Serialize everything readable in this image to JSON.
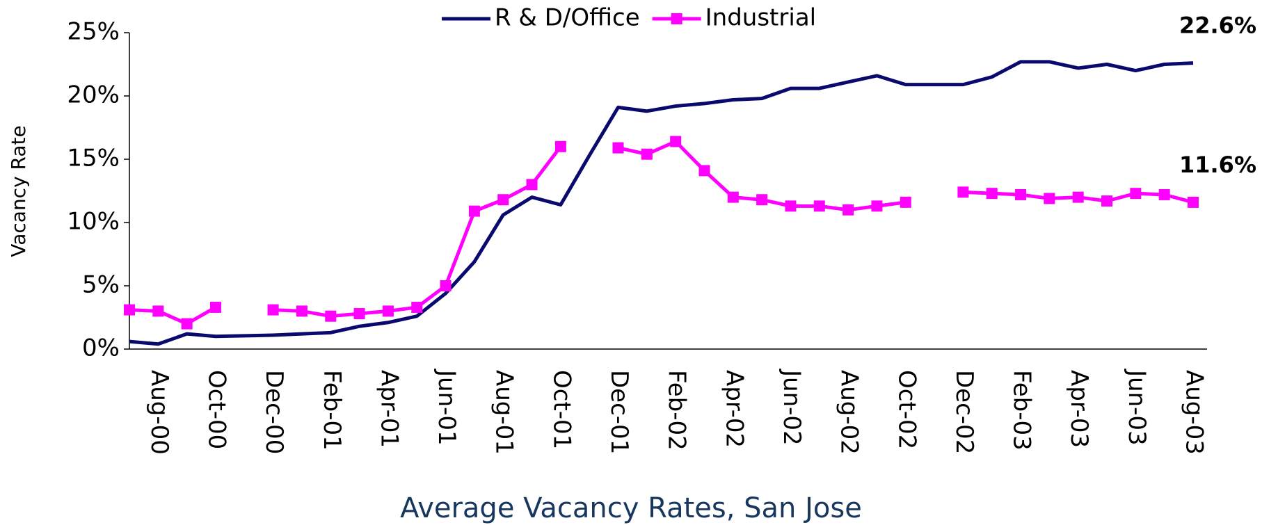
{
  "chart_data": {
    "type": "line",
    "title": "Average Vacancy Rates, San Jose",
    "y_label": "Vacancy Rate",
    "categories": [
      null,
      "Aug-00",
      null,
      "Oct-00",
      null,
      "Dec-00",
      null,
      "Feb-01",
      null,
      "Apr-01",
      null,
      "Jun-01",
      null,
      "Aug-01",
      null,
      "Oct-01",
      null,
      "Dec-01",
      null,
      "Feb-02",
      null,
      "Apr-02",
      null,
      "Jun-02",
      null,
      "Aug-02",
      null,
      "Oct-02",
      null,
      "Dec-02",
      null,
      "Feb-03",
      null,
      "Apr-03",
      null,
      "Jun-03",
      null,
      "Aug-03"
    ],
    "series": [
      {
        "name": "R & D/Office",
        "color": "#0a0a6e",
        "marker": "none",
        "values": [
          0.6,
          0.4,
          1.2,
          1.0,
          1.05,
          1.1,
          1.2,
          1.3,
          1.8,
          2.1,
          2.6,
          4.4,
          6.9,
          10.6,
          12.0,
          11.4,
          15.3,
          19.1,
          18.8,
          19.2,
          19.4,
          19.7,
          19.8,
          20.6,
          20.6,
          21.1,
          21.6,
          20.9,
          20.9,
          20.9,
          21.5,
          22.7,
          22.7,
          22.2,
          22.5,
          22.0,
          22.5,
          22.6
        ]
      },
      {
        "name": "Industrial",
        "color": "#ff00ff",
        "marker": "square",
        "values": [
          3.1,
          3.0,
          2.0,
          3.3,
          null,
          3.1,
          3.0,
          2.6,
          2.8,
          3.0,
          3.3,
          5.0,
          10.9,
          11.8,
          13.0,
          16.0,
          null,
          15.9,
          15.4,
          16.4,
          14.1,
          12.0,
          11.8,
          11.3,
          11.3,
          11.0,
          11.3,
          11.6,
          null,
          12.4,
          12.3,
          12.2,
          11.9,
          12.0,
          11.7,
          12.3,
          12.2,
          11.6
        ]
      }
    ],
    "annotations": [
      "22.6%",
      "11.6%"
    ],
    "ylim": [
      0,
      25
    ],
    "yticks": [
      {
        "value": 0,
        "label": "0%"
      },
      {
        "value": 5,
        "label": "5%"
      },
      {
        "value": 10,
        "label": "10%"
      },
      {
        "value": 15,
        "label": "15%"
      },
      {
        "value": 20,
        "label": "20%"
      },
      {
        "value": 25,
        "label": "25%"
      }
    ],
    "legend": "top",
    "grid": false
  }
}
